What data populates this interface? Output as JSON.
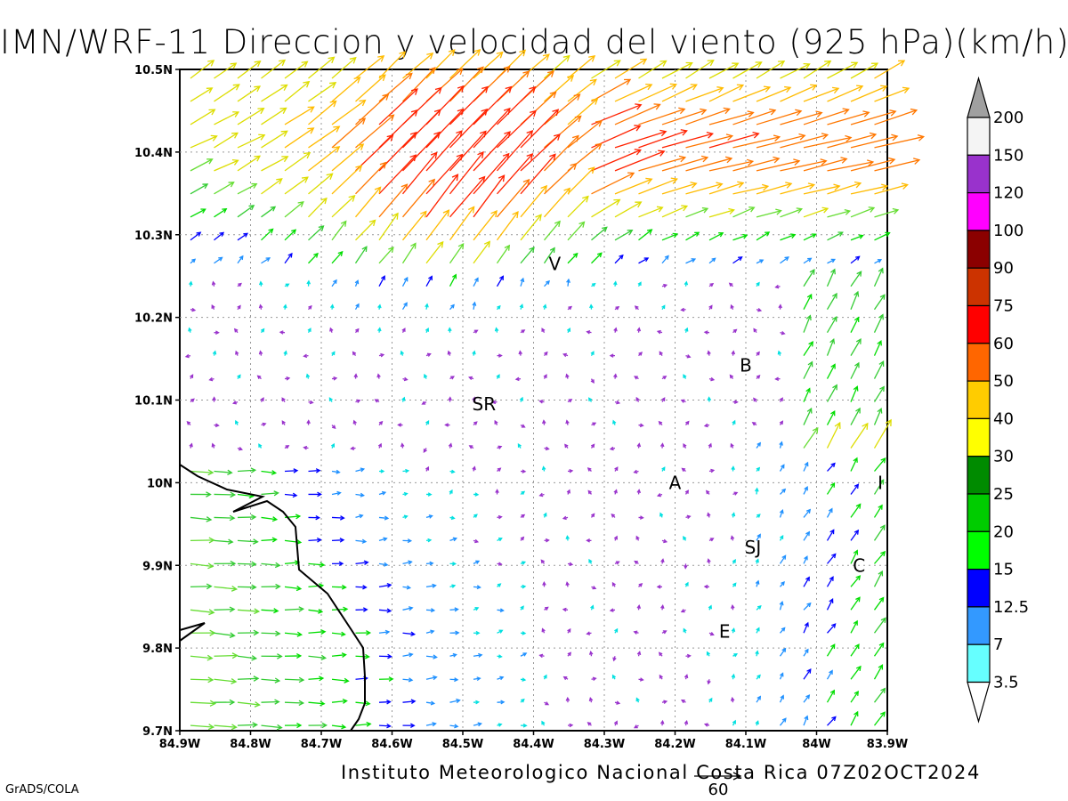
{
  "title": "IMN/WRF-11 Direccion y velocidad del viento (925 hPa)(km/h)",
  "footer": "Instituto Meteorologico Nacional Costa Rica 07Z02OCT2024",
  "credit": "GrADS/COLA",
  "reference_vector": {
    "label": "60",
    "speed_kmh": 60
  },
  "axes": {
    "lon_ticks": [
      "84.9W",
      "84.8W",
      "84.7W",
      "84.6W",
      "84.5W",
      "84.4W",
      "84.3W",
      "84.2W",
      "84.1W",
      "84W",
      "83.9W"
    ],
    "lat_ticks": [
      "10.5N",
      "10.4N",
      "10.3N",
      "10.2N",
      "10.1N",
      "10N",
      "9.9N",
      "9.8N",
      "9.7N"
    ]
  },
  "places": [
    {
      "label": "V",
      "lon": -84.37,
      "lat": 10.265
    },
    {
      "label": "SR",
      "lon": -84.47,
      "lat": 10.095
    },
    {
      "label": "B",
      "lon": -84.1,
      "lat": 10.142
    },
    {
      "label": "A",
      "lon": -84.2,
      "lat": 10.0
    },
    {
      "label": "I",
      "lon": -83.91,
      "lat": 10.0
    },
    {
      "label": "SJ",
      "lon": -84.09,
      "lat": 9.922
    },
    {
      "label": "C",
      "lon": -83.94,
      "lat": 9.9
    },
    {
      "label": "E",
      "lon": -84.13,
      "lat": 9.82
    }
  ],
  "colorbar": {
    "labels": [
      "200",
      "150",
      "120",
      "100",
      "90",
      "75",
      "60",
      "50",
      "40",
      "30",
      "25",
      "20",
      "15",
      "12.5",
      "7",
      "3.5"
    ],
    "colors": [
      "#a0a0a0",
      "#f4f4f4",
      "#9932cc",
      "#ff00ff",
      "#8b0000",
      "#cc3300",
      "#ff0000",
      "#ff6600",
      "#ffcc00",
      "#ffff00",
      "#008b00",
      "#00cc00",
      "#00ff00",
      "#0000ff",
      "#3399ff",
      "#66ffff",
      "#ffffff"
    ]
  },
  "chart_data": {
    "type": "vector-field",
    "units": "km/h",
    "level": "925 hPa",
    "xlim": [
      -84.9,
      -83.9
    ],
    "ylim": [
      9.7,
      10.5
    ]
  }
}
